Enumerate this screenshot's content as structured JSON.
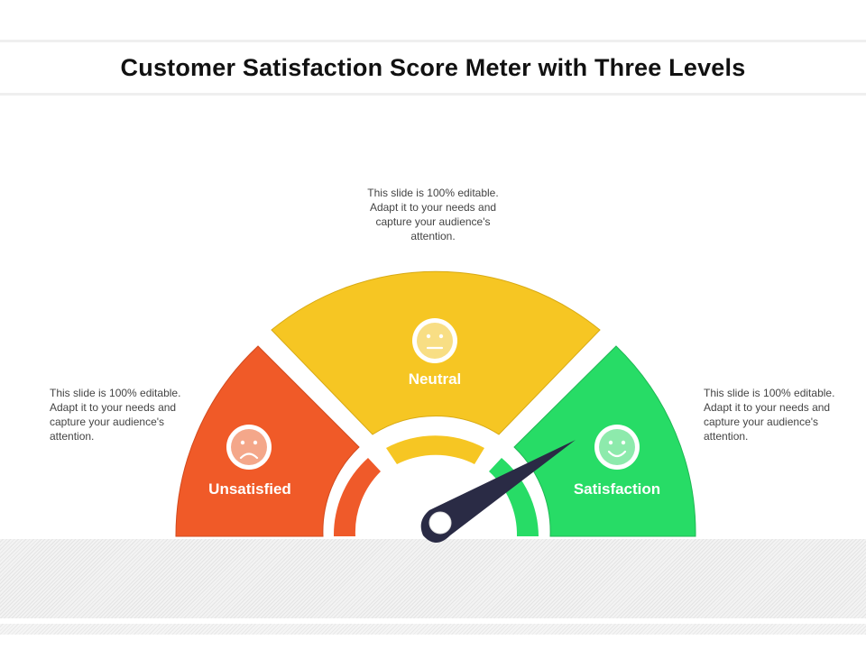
{
  "title": "Customer Satisfaction Score Meter with Three Levels",
  "levels": [
    {
      "label": "Unsatisfied",
      "color": "#F05A28",
      "inner_color": "#EF5A2A",
      "face": "sad-face-icon",
      "face_color": "#F4A78A"
    },
    {
      "label": "Neutral",
      "color": "#F6C623",
      "inner_color": "#F6C623",
      "face": "neutral-face-icon",
      "face_color": "#F8DE84"
    },
    {
      "label": "Satisfaction",
      "color": "#27DC66",
      "inner_color": "#27DC66",
      "face": "happy-face-icon",
      "face_color": "#8DEAAC"
    }
  ],
  "descriptions": {
    "top": "This slide is 100% editable. Adapt it to your needs and capture your audience's attention.",
    "left": "This slide is 100% editable. Adapt it to your needs and capture your audience's attention.",
    "right": "This slide is 100% editable. Adapt it to your needs and capture your audience's attention."
  },
  "needle": {
    "color": "#2A2B45",
    "level": "Satisfaction"
  }
}
